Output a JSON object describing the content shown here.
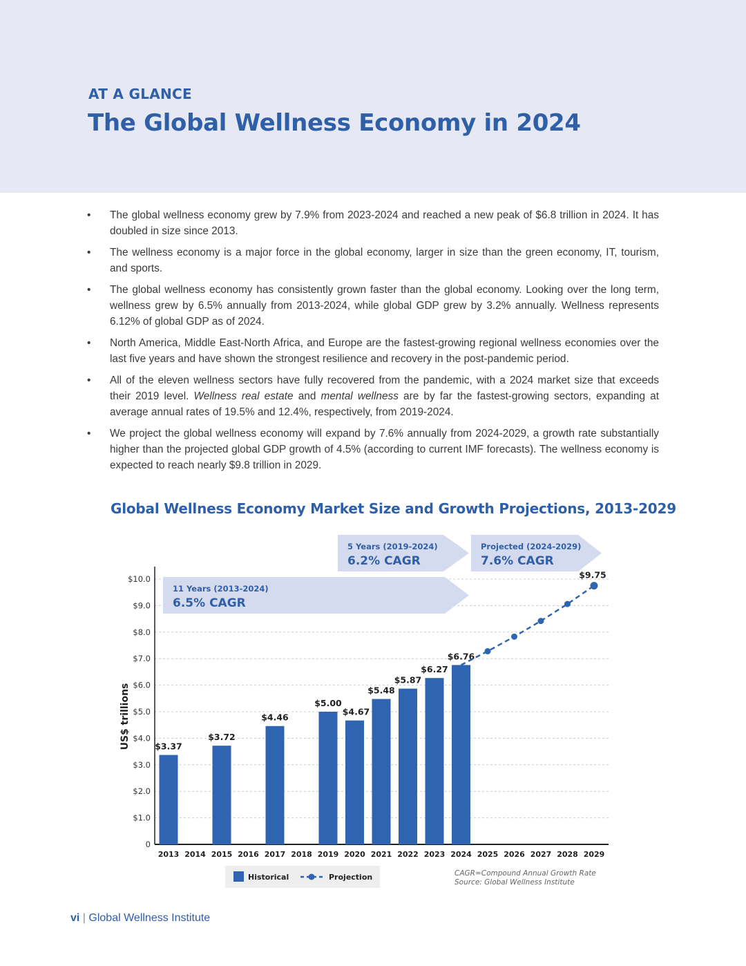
{
  "header": {
    "eyebrow": "AT A GLANCE",
    "title": "The Global Wellness Economy in 2024"
  },
  "bullets": {
    "b1": "The global wellness  economy grew by 7.9% from 2023-2024 and reached a new peak of $6.8 trillion in 2024. It has doubled in size since 2013.",
    "b2": "The wellness economy is a major force in the global economy, larger in size than the green economy, IT, tourism, and sports.",
    "b3": "The global wellness economy has consistently grown faster than the global economy. Looking over the long term, wellness grew by 6.5% annually from 2013-2024, while global GDP grew by 3.2% annually. Wellness represents 6.12% of global GDP as of 2024.",
    "b4": "North America, Middle East-North Africa, and Europe are the fastest-growing regional wellness economies over the last five years and have shown the strongest resilience and recovery in the post-pandemic period.",
    "b5": {
      "part1": "All of the eleven wellness sectors have fully recovered from the pandemic, with a 2024 market size that exceeds their 2019 level. ",
      "em1": "Wellness real estate",
      "part2": " and ",
      "em2": "mental wellness",
      "part3": " are by far the fastest-growing sectors, expanding at average annual rates of 19.5% and 12.4%, respectively, from 2019-2024."
    },
    "b6": "We project the global wellness economy will expand by 7.6% annually from 2024-2029, a growth rate substantially higher than the projected global GDP growth of 4.5% (according to current IMF forecasts). The wellness economy is expected to reach nearly $9.8 trillion in 2029."
  },
  "chart_data": {
    "type": "bar",
    "title": "Global Wellness Economy Market Size and Growth Projections, 2013-2029",
    "ylabel": "US$ trillions",
    "ylim": [
      0,
      10
    ],
    "y_ticks": [
      "0",
      "$1.0",
      "$2.0",
      "$3.0",
      "$4.0",
      "$5.0",
      "$6.0",
      "$7.0",
      "$8.0",
      "$9.0",
      "$10.0"
    ],
    "grid": true,
    "categories": [
      "2013",
      "2014",
      "2015",
      "2016",
      "2017",
      "2018",
      "2019",
      "2020",
      "2021",
      "2022",
      "2023",
      "2024",
      "2025",
      "2026",
      "2027",
      "2028",
      "2029"
    ],
    "series": [
      {
        "name": "Historical",
        "kind": "bar",
        "color": "#2e64b0",
        "points": [
          {
            "x": "2013",
            "y": 3.37,
            "label": "$3.37"
          },
          {
            "x": "2015",
            "y": 3.72,
            "label": "$3.72"
          },
          {
            "x": "2017",
            "y": 4.46,
            "label": "$4.46"
          },
          {
            "x": "2019",
            "y": 5.0,
            "label": "$5.00"
          },
          {
            "x": "2020",
            "y": 4.67,
            "label": "$4.67"
          },
          {
            "x": "2021",
            "y": 5.48,
            "label": "$5.48"
          },
          {
            "x": "2022",
            "y": 5.87,
            "label": "$5.87"
          },
          {
            "x": "2023",
            "y": 6.27,
            "label": "$6.27"
          },
          {
            "x": "2024",
            "y": 6.76,
            "label": "$6.76"
          }
        ]
      },
      {
        "name": "Projection",
        "kind": "dashed-line",
        "color": "#2e64b0",
        "points": [
          {
            "x": "2024",
            "y": 6.76
          },
          {
            "x": "2025",
            "y": 7.28
          },
          {
            "x": "2026",
            "y": 7.83
          },
          {
            "x": "2027",
            "y": 8.42
          },
          {
            "x": "2028",
            "y": 9.06
          },
          {
            "x": "2029",
            "y": 9.75,
            "label": "$9.75"
          }
        ]
      }
    ],
    "annotations": [
      {
        "period": "11 Years (2013-2024)",
        "value": "6.5% CAGR",
        "from": "2013",
        "to": "2024"
      },
      {
        "period": "5 Years (2019-2024)",
        "value": "6.2% CAGR",
        "from": "2019",
        "to": "2024"
      },
      {
        "period": "Projected (2024-2029)",
        "value": "7.6% CAGR",
        "from": "2024",
        "to": "2029"
      }
    ],
    "legend": {
      "position": "bottom",
      "items": [
        "Historical",
        "Projection"
      ]
    },
    "notes": [
      "CAGR=Compound Annual Growth Rate",
      "Source: Global Wellness Institute"
    ]
  },
  "footer": {
    "page": "vi",
    "separator": "|",
    "org": "Global Wellness Institute"
  },
  "colors": {
    "brand_blue": "#2f5fa6",
    "bar_blue": "#2e64b0",
    "band_bg": "#e6e9f4",
    "banner_bg": "#d5dbee"
  }
}
